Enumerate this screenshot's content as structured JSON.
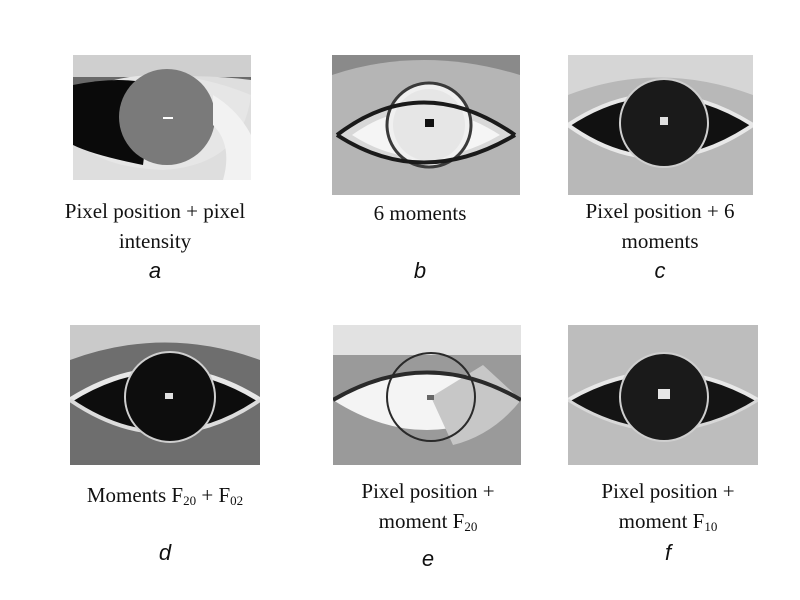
{
  "figure": {
    "panels": [
      {
        "letter": "a",
        "caption_lines": [
          "Pixel position + pixel",
          "intensity"
        ]
      },
      {
        "letter": "b",
        "caption_lines": [
          "6 moments"
        ]
      },
      {
        "letter": "c",
        "caption_lines": [
          "Pixel position + 6",
          "moments"
        ]
      },
      {
        "letter": "d",
        "caption_main": "Moments F",
        "sub1": "20",
        "mid": " + F",
        "sub2": "02"
      },
      {
        "letter": "e",
        "caption_line1": "Pixel position +",
        "caption_line2_main": "moment F",
        "sub": "20"
      },
      {
        "letter": "f",
        "caption_line1": "Pixel position +",
        "caption_line2_main": "moment F",
        "sub": "10"
      }
    ]
  }
}
